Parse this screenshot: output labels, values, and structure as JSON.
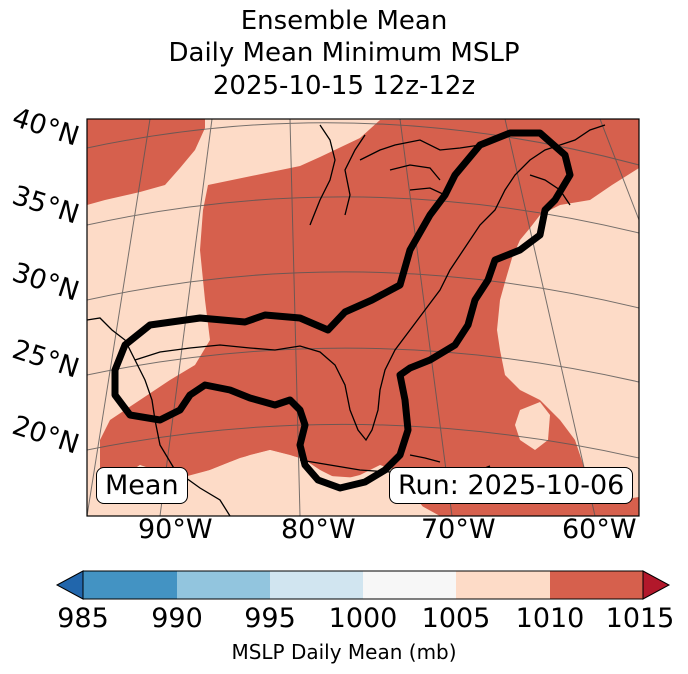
{
  "title_lines": [
    "Ensemble Mean",
    "Daily Mean Minimum MSLP",
    "2025-10-15 12z-12z"
  ],
  "lat_ticks": [
    "40°N",
    "35°N",
    "30°N",
    "25°N",
    "20°N"
  ],
  "lon_ticks": [
    "90°W",
    "80°W",
    "70°W",
    "60°W"
  ],
  "mean_badge": "Mean",
  "run_badge": "Run: 2025-10-06",
  "colorbar": {
    "label": "MSLP Daily Mean (mb)",
    "ticks": [
      "985",
      "990",
      "995",
      "1000",
      "1005",
      "1010",
      "1015"
    ],
    "colors": [
      "#2166ac",
      "#4393c3",
      "#92c5de",
      "#d1e5f0",
      "#f7f7f7",
      "#fddbc7",
      "#d6604d",
      "#b2182b"
    ]
  },
  "map_colors": {
    "light": "#fddbc7",
    "dark": "#d6604d"
  }
}
